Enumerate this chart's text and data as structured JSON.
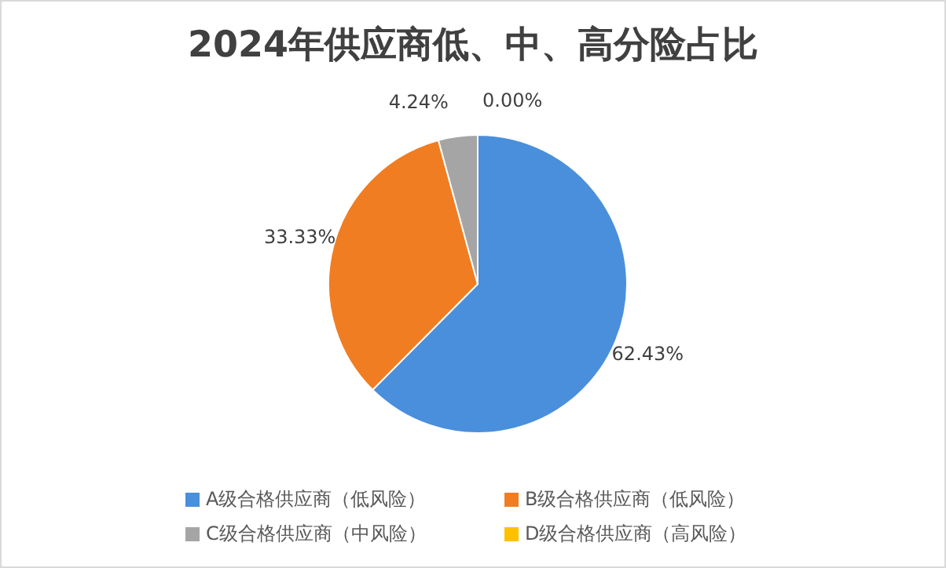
{
  "chart_data": {
    "type": "pie",
    "title": "2024年供应商低、中、高分险占比",
    "categories": [
      "A级合格供应商（低风险）",
      "B级合格供应商（低风险）",
      "C级合格供应商（中风险）",
      "D级合格供应商（高风险）"
    ],
    "values": [
      62.43,
      33.33,
      4.24,
      0.0
    ],
    "colors": [
      "#4a8fdc",
      "#f07d22",
      "#a5a5a5",
      "#ffc000"
    ],
    "value_labels": [
      "62.43%",
      "33.33%",
      "4.24%",
      "0.00%"
    ],
    "legend": "bottom"
  }
}
